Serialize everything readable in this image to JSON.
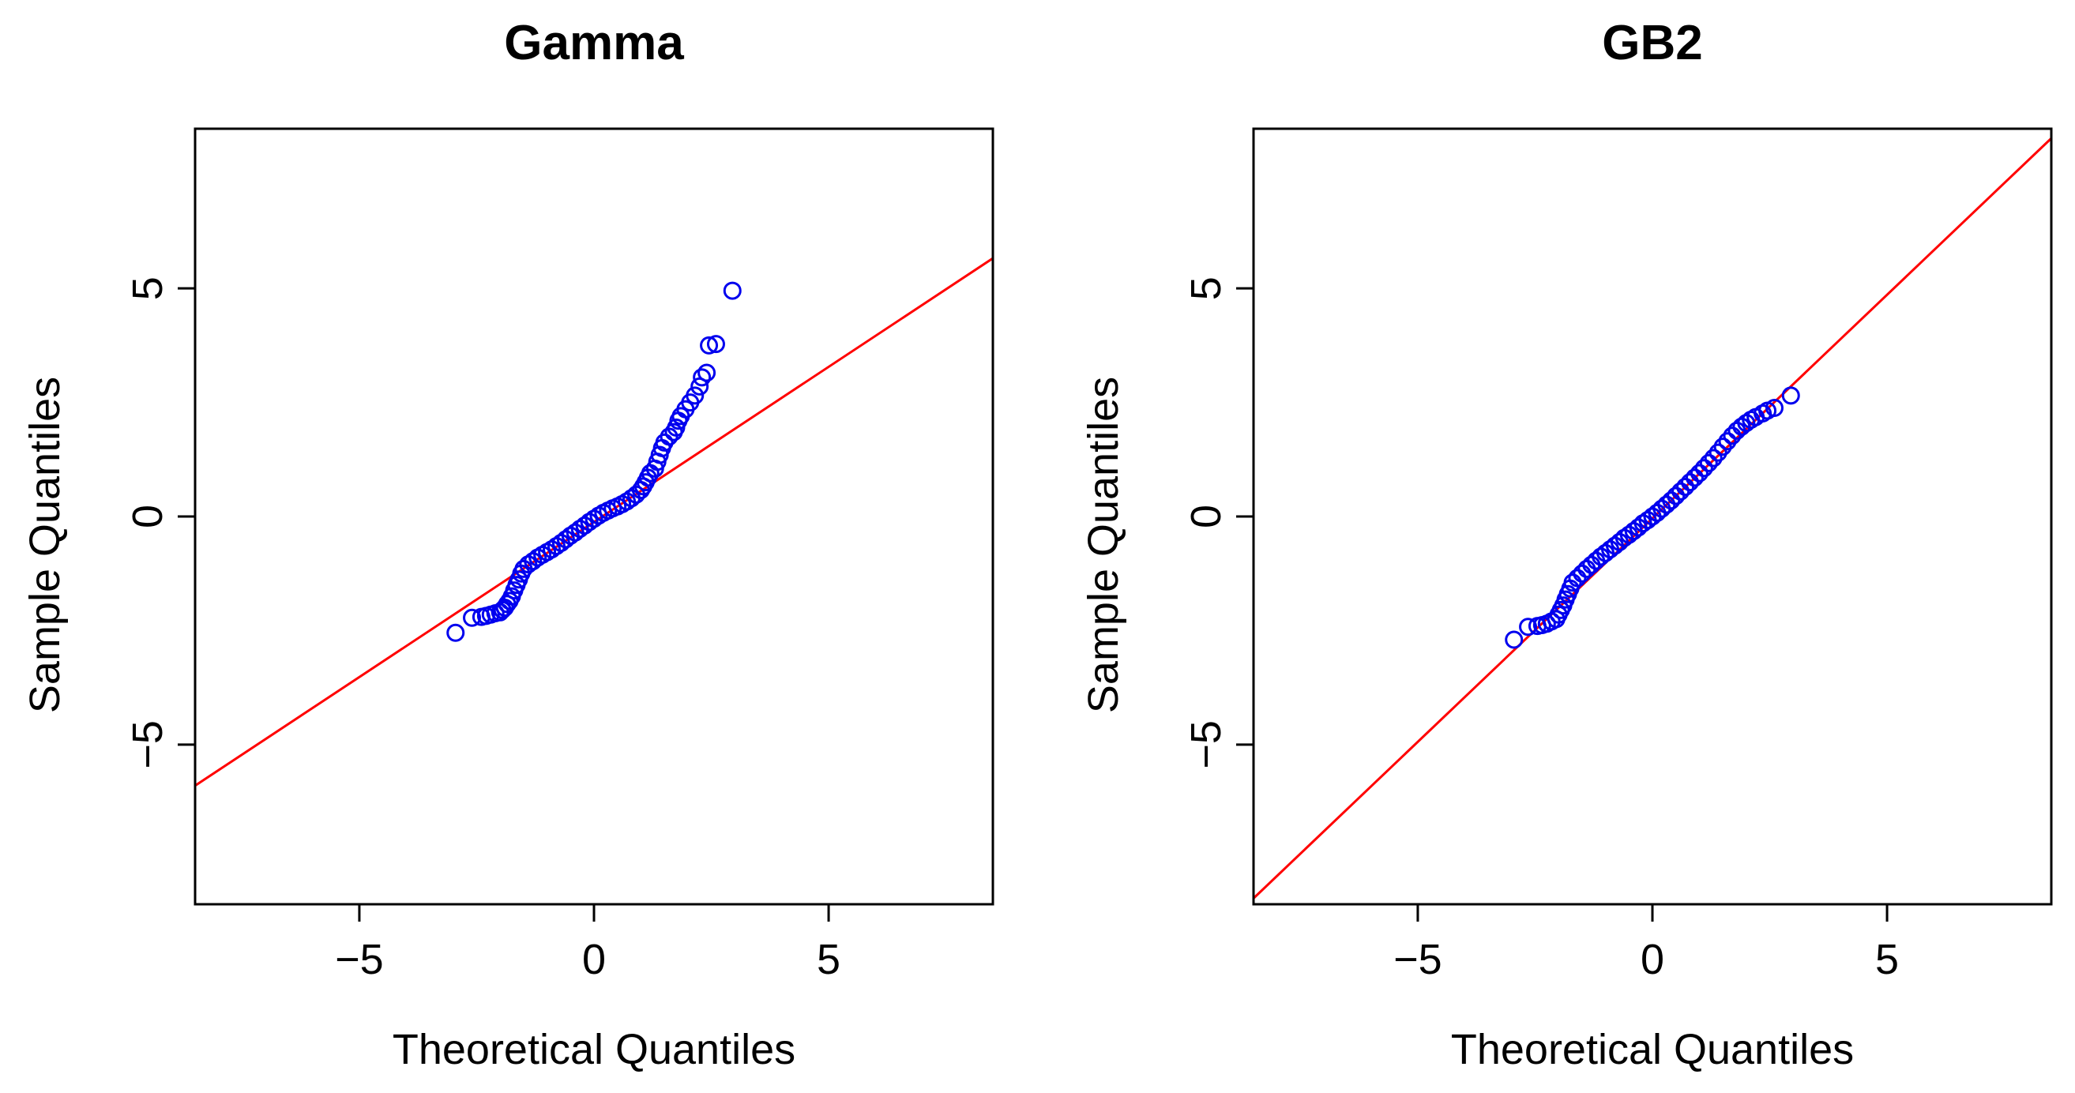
{
  "chart_data": [
    {
      "type": "scatter",
      "title": "Gamma",
      "xlabel": "Theoretical Quantiles",
      "ylabel": "Sample Quantiles",
      "xlim": [
        -8.5,
        8.5
      ],
      "ylim": [
        -8.5,
        8.5
      ],
      "xticks": [
        -5,
        0,
        5
      ],
      "xtick_labels": [
        "−5",
        "0",
        "5"
      ],
      "yticks": [
        -5,
        0,
        5
      ],
      "ytick_labels": [
        "−5",
        "0",
        "5"
      ],
      "grid": false,
      "point_color": "#0000ee",
      "line_color": "#ff0000",
      "reference_line": {
        "intercept": -0.12,
        "slope": 0.68
      },
      "points": [
        [
          -2.95,
          -2.55
        ],
        [
          -2.6,
          -2.22
        ],
        [
          -2.4,
          -2.2
        ],
        [
          -2.3,
          -2.18
        ],
        [
          -2.2,
          -2.15
        ],
        [
          -2.1,
          -2.12
        ],
        [
          -2.0,
          -2.1
        ],
        [
          -1.95,
          -2.05
        ],
        [
          -1.9,
          -2.0
        ],
        [
          -1.85,
          -1.92
        ],
        [
          -1.8,
          -1.85
        ],
        [
          -1.75,
          -1.75
        ],
        [
          -1.7,
          -1.62
        ],
        [
          -1.65,
          -1.5
        ],
        [
          -1.6,
          -1.38
        ],
        [
          -1.55,
          -1.25
        ],
        [
          -1.5,
          -1.15
        ],
        [
          -1.4,
          -1.05
        ],
        [
          -1.3,
          -0.98
        ],
        [
          -1.2,
          -0.9
        ],
        [
          -1.1,
          -0.84
        ],
        [
          -1.0,
          -0.78
        ],
        [
          -0.9,
          -0.72
        ],
        [
          -0.8,
          -0.65
        ],
        [
          -0.7,
          -0.58
        ],
        [
          -0.6,
          -0.5
        ],
        [
          -0.5,
          -0.42
        ],
        [
          -0.4,
          -0.35
        ],
        [
          -0.3,
          -0.27
        ],
        [
          -0.2,
          -0.2
        ],
        [
          -0.1,
          -0.12
        ],
        [
          0.0,
          -0.05
        ],
        [
          0.1,
          0.02
        ],
        [
          0.2,
          0.08
        ],
        [
          0.3,
          0.13
        ],
        [
          0.4,
          0.18
        ],
        [
          0.5,
          0.22
        ],
        [
          0.6,
          0.27
        ],
        [
          0.7,
          0.33
        ],
        [
          0.8,
          0.4
        ],
        [
          0.9,
          0.48
        ],
        [
          1.0,
          0.58
        ],
        [
          1.05,
          0.66
        ],
        [
          1.1,
          0.75
        ],
        [
          1.15,
          0.85
        ],
        [
          1.2,
          0.95
        ],
        [
          1.3,
          1.05
        ],
        [
          1.35,
          1.2
        ],
        [
          1.4,
          1.35
        ],
        [
          1.45,
          1.5
        ],
        [
          1.5,
          1.62
        ],
        [
          1.6,
          1.75
        ],
        [
          1.7,
          1.85
        ],
        [
          1.75,
          1.95
        ],
        [
          1.8,
          2.1
        ],
        [
          1.85,
          2.2
        ],
        [
          1.95,
          2.35
        ],
        [
          2.05,
          2.5
        ],
        [
          2.15,
          2.65
        ],
        [
          2.25,
          2.85
        ],
        [
          2.3,
          3.05
        ],
        [
          2.4,
          3.15
        ],
        [
          2.45,
          3.75
        ],
        [
          2.6,
          3.78
        ],
        [
          2.95,
          4.95
        ]
      ]
    },
    {
      "type": "scatter",
      "title": "GB2",
      "xlabel": "Theoretical Quantiles",
      "ylabel": "Sample Quantiles",
      "xlim": [
        -8.5,
        8.5
      ],
      "ylim": [
        -8.5,
        8.5
      ],
      "xticks": [
        -5,
        0,
        5
      ],
      "xtick_labels": [
        "−5",
        "0",
        "5"
      ],
      "yticks": [
        -5,
        0,
        5
      ],
      "ytick_labels": [
        "−5",
        "0",
        "5"
      ],
      "grid": false,
      "point_color": "#0000ee",
      "line_color": "#ff0000",
      "reference_line": {
        "intercept": -0.04,
        "slope": 0.98
      },
      "points": [
        [
          -2.95,
          -2.7
        ],
        [
          -2.65,
          -2.42
        ],
        [
          -2.45,
          -2.4
        ],
        [
          -2.35,
          -2.38
        ],
        [
          -2.25,
          -2.35
        ],
        [
          -2.15,
          -2.3
        ],
        [
          -2.05,
          -2.25
        ],
        [
          -2.0,
          -2.15
        ],
        [
          -1.95,
          -2.05
        ],
        [
          -1.9,
          -1.95
        ],
        [
          -1.85,
          -1.82
        ],
        [
          -1.8,
          -1.7
        ],
        [
          -1.75,
          -1.58
        ],
        [
          -1.7,
          -1.45
        ],
        [
          -1.6,
          -1.35
        ],
        [
          -1.5,
          -1.25
        ],
        [
          -1.4,
          -1.15
        ],
        [
          -1.3,
          -1.06
        ],
        [
          -1.2,
          -0.97
        ],
        [
          -1.1,
          -0.88
        ],
        [
          -1.0,
          -0.8
        ],
        [
          -0.9,
          -0.72
        ],
        [
          -0.8,
          -0.64
        ],
        [
          -0.7,
          -0.56
        ],
        [
          -0.6,
          -0.47
        ],
        [
          -0.5,
          -0.4
        ],
        [
          -0.4,
          -0.32
        ],
        [
          -0.3,
          -0.24
        ],
        [
          -0.2,
          -0.15
        ],
        [
          -0.1,
          -0.08
        ],
        [
          0.0,
          0.0
        ],
        [
          0.1,
          0.08
        ],
        [
          0.2,
          0.17
        ],
        [
          0.3,
          0.26
        ],
        [
          0.4,
          0.35
        ],
        [
          0.5,
          0.45
        ],
        [
          0.6,
          0.55
        ],
        [
          0.7,
          0.65
        ],
        [
          0.8,
          0.75
        ],
        [
          0.9,
          0.85
        ],
        [
          1.0,
          0.95
        ],
        [
          1.1,
          1.06
        ],
        [
          1.2,
          1.17
        ],
        [
          1.3,
          1.28
        ],
        [
          1.4,
          1.4
        ],
        [
          1.5,
          1.53
        ],
        [
          1.6,
          1.65
        ],
        [
          1.7,
          1.77
        ],
        [
          1.8,
          1.88
        ],
        [
          1.9,
          1.97
        ],
        [
          2.0,
          2.05
        ],
        [
          2.1,
          2.12
        ],
        [
          2.2,
          2.18
        ],
        [
          2.35,
          2.26
        ],
        [
          2.45,
          2.32
        ],
        [
          2.6,
          2.38
        ],
        [
          2.95,
          2.65
        ]
      ]
    }
  ]
}
